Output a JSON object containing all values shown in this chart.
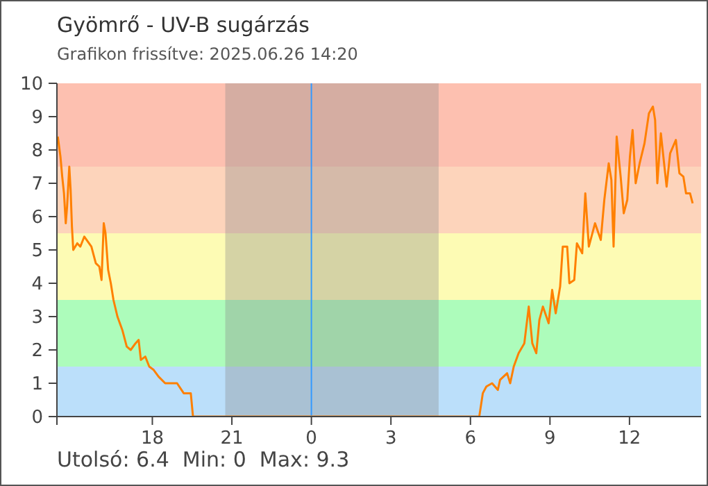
{
  "chart_data": {
    "type": "line",
    "title": "Gyömrő - UV-B sugárzás",
    "subtitle": "Grafikon frissítve: 2025.06.26 14:20",
    "annotations": [
      "Utolsó: 6.4  Min: 0  Max: 9.3"
    ],
    "x": [
      "2025-06-25T14:26",
      "2025-06-25T14:32",
      "2025-06-25T14:36",
      "2025-06-25T14:40",
      "2025-06-25T14:44",
      "2025-06-25T14:47",
      "2025-06-25T14:52",
      "2025-06-25T14:55",
      "2025-06-25T14:58",
      "2025-06-25T15:01",
      "2025-06-25T15:10",
      "2025-06-25T15:17",
      "2025-06-25T15:26",
      "2025-06-25T15:42",
      "2025-06-25T15:52",
      "2025-06-25T16:00",
      "2025-06-25T16:05",
      "2025-06-25T16:10",
      "2025-06-25T16:14",
      "2025-06-25T16:20",
      "2025-06-25T16:26",
      "2025-06-25T16:32",
      "2025-06-25T16:41",
      "2025-06-25T16:52",
      "2025-06-25T17:02",
      "2025-06-25T17:11",
      "2025-06-25T17:22",
      "2025-06-25T17:29",
      "2025-06-25T17:34",
      "2025-06-25T17:44",
      "2025-06-25T17:53",
      "2025-06-25T18:03",
      "2025-06-25T18:14",
      "2025-06-25T18:29",
      "2025-06-25T18:56",
      "2025-06-25T19:11",
      "2025-06-25T19:27",
      "2025-06-25T19:32",
      "2025-06-26T00:00",
      "2025-06-26T06:20",
      "2025-06-26T06:28",
      "2025-06-26T06:36",
      "2025-06-26T06:49",
      "2025-06-26T07:02",
      "2025-06-26T07:07",
      "2025-06-26T07:23",
      "2025-06-26T07:30",
      "2025-06-26T07:38",
      "2025-06-26T07:49",
      "2025-06-26T08:02",
      "2025-06-26T08:12",
      "2025-06-26T08:20",
      "2025-06-26T08:29",
      "2025-06-26T08:36",
      "2025-06-26T08:44",
      "2025-06-26T08:57",
      "2025-06-26T09:05",
      "2025-06-26T09:13",
      "2025-06-26T09:23",
      "2025-06-26T09:29",
      "2025-06-26T09:39",
      "2025-06-26T09:44",
      "2025-06-26T09:55",
      "2025-06-26T10:01",
      "2025-06-26T10:13",
      "2025-06-26T10:20",
      "2025-06-26T10:28",
      "2025-06-26T10:42",
      "2025-06-26T10:55",
      "2025-06-26T11:03",
      "2025-06-26T11:13",
      "2025-06-26T11:19",
      "2025-06-26T11:24",
      "2025-06-26T11:31",
      "2025-06-26T11:40",
      "2025-06-26T11:47",
      "2025-06-26T11:55",
      "2025-06-26T12:01",
      "2025-06-26T12:07",
      "2025-06-26T12:14",
      "2025-06-26T12:23",
      "2025-06-26T12:34",
      "2025-06-26T12:44",
      "2025-06-26T12:53",
      "2025-06-26T12:58",
      "2025-06-26T13:03",
      "2025-06-26T13:11",
      "2025-06-26T13:24",
      "2025-06-26T13:32",
      "2025-06-26T13:45",
      "2025-06-26T13:53",
      "2025-06-26T14:02",
      "2025-06-26T14:08",
      "2025-06-26T14:17",
      "2025-06-26T14:23"
    ],
    "series": [
      {
        "color": "#ff8000",
        "values": [
          8.4,
          7.8,
          7.2,
          6.7,
          5.8,
          6.3,
          7.5,
          6.8,
          5.7,
          5.0,
          5.2,
          5.1,
          5.4,
          5.1,
          4.6,
          4.5,
          4.1,
          5.8,
          5.5,
          4.4,
          4.0,
          3.5,
          3.0,
          2.6,
          2.1,
          2.0,
          2.2,
          2.3,
          1.7,
          1.8,
          1.5,
          1.4,
          1.2,
          1.0,
          1.0,
          0.7,
          0.7,
          0,
          0,
          0,
          0.7,
          0.9,
          1.0,
          0.8,
          1.1,
          1.3,
          1.0,
          1.5,
          1.9,
          2.2,
          3.3,
          2.2,
          1.9,
          2.9,
          3.3,
          2.8,
          3.8,
          3.1,
          3.9,
          5.1,
          5.1,
          4.0,
          4.1,
          5.2,
          4.9,
          6.7,
          5.1,
          5.8,
          5.3,
          6.5,
          7.6,
          7.1,
          5.1,
          8.4,
          7.2,
          6.1,
          6.5,
          7.8,
          8.6,
          7.0,
          7.6,
          8.2,
          9.1,
          9.3,
          8.9,
          7.0,
          8.5,
          6.9,
          7.9,
          8.3,
          7.3,
          7.2,
          6.7,
          6.7,
          6.4
        ]
      }
    ],
    "xlim": [
      "2025-06-25T14:24",
      "2025-06-26T14:42"
    ],
    "xticks": [
      {
        "value": "2025-06-25T14:24",
        "label": null
      },
      {
        "value": "2025-06-25T18:00",
        "label": "18"
      },
      {
        "value": "2025-06-25T21:00",
        "label": "21"
      },
      {
        "value": "2025-06-26T00:00",
        "label": "0"
      },
      {
        "value": "2025-06-26T03:00",
        "label": "3"
      },
      {
        "value": "2025-06-26T06:00",
        "label": "6"
      },
      {
        "value": "2025-06-26T09:00",
        "label": "9"
      },
      {
        "value": "2025-06-26T12:00",
        "label": "12"
      }
    ],
    "ylim": [
      0,
      10
    ],
    "yticks": [
      0,
      1,
      2,
      3,
      4,
      5,
      6,
      7,
      8,
      9,
      10
    ],
    "bands": [
      {
        "axis": "y",
        "from": 0,
        "to": 1.5,
        "color": "#bbdffa"
      },
      {
        "axis": "y",
        "from": 1.5,
        "to": 3.5,
        "color": "#adfcbb"
      },
      {
        "axis": "y",
        "from": 3.5,
        "to": 5.5,
        "color": "#fdfbb4"
      },
      {
        "axis": "y",
        "from": 5.5,
        "to": 7.5,
        "color": "#fdd4bb"
      },
      {
        "axis": "y",
        "from": 7.5,
        "to": 10,
        "color": "#fdc0b0"
      },
      {
        "axis": "x",
        "from": "2025-06-25T20:45",
        "to": "2025-06-26T04:48",
        "color": "#8a8a8a"
      }
    ],
    "ref_lines": [
      {
        "axis": "x",
        "value": "2025-06-26T00:00",
        "color": "#3399ff"
      }
    ],
    "grid": false,
    "legend": false,
    "marker": "none",
    "line_style": "solid"
  }
}
